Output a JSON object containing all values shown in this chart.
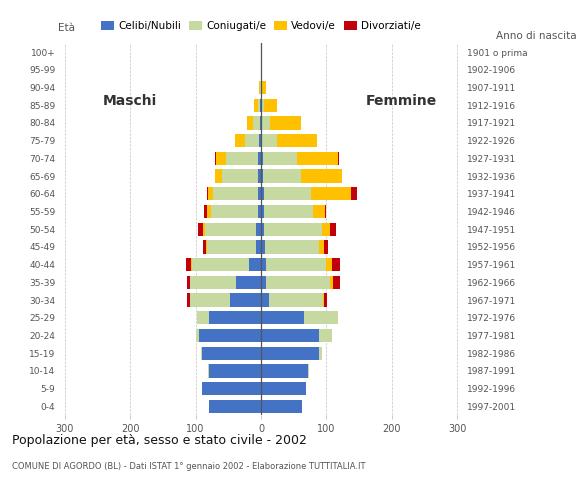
{
  "age_groups": [
    "0-4",
    "5-9",
    "10-14",
    "15-19",
    "20-24",
    "25-29",
    "30-34",
    "35-39",
    "40-44",
    "45-49",
    "50-54",
    "55-59",
    "60-64",
    "65-69",
    "70-74",
    "75-79",
    "80-84",
    "85-89",
    "90-94",
    "95-99",
    "100+"
  ],
  "birth_years": [
    "1997-2001",
    "1992-1996",
    "1987-1991",
    "1982-1986",
    "1977-1981",
    "1972-1976",
    "1967-1971",
    "1962-1966",
    "1957-1961",
    "1952-1956",
    "1947-1951",
    "1942-1946",
    "1937-1941",
    "1932-1936",
    "1927-1931",
    "1922-1926",
    "1917-1921",
    "1912-1916",
    "1907-1911",
    "1902-1906",
    "1901 o prima"
  ],
  "colors": {
    "celibe": "#4472c4",
    "coniugato": "#c5d9a0",
    "vedovo": "#ffc000",
    "divorziato": "#c0000b"
  },
  "maschi": {
    "celibe": [
      80,
      90,
      80,
      90,
      95,
      80,
      48,
      38,
      18,
      8,
      8,
      5,
      5,
      5,
      5,
      3,
      2,
      1,
      0,
      0,
      0
    ],
    "coniugato": [
      0,
      0,
      1,
      2,
      5,
      18,
      60,
      70,
      88,
      75,
      78,
      72,
      68,
      55,
      48,
      22,
      10,
      4,
      1,
      0,
      0
    ],
    "vedovo": [
      0,
      0,
      0,
      0,
      0,
      0,
      0,
      0,
      1,
      1,
      2,
      5,
      8,
      10,
      16,
      15,
      10,
      5,
      2,
      0,
      0
    ],
    "divorziato": [
      0,
      0,
      0,
      0,
      0,
      0,
      5,
      5,
      8,
      5,
      8,
      5,
      2,
      1,
      1,
      0,
      0,
      0,
      0,
      0,
      0
    ]
  },
  "femmine": {
    "celibe": [
      62,
      68,
      72,
      88,
      88,
      65,
      12,
      8,
      8,
      6,
      5,
      4,
      4,
      3,
      3,
      2,
      1,
      0,
      0,
      0,
      0
    ],
    "coniugato": [
      0,
      0,
      2,
      5,
      20,
      52,
      82,
      98,
      92,
      82,
      88,
      75,
      72,
      58,
      52,
      22,
      12,
      5,
      2,
      0,
      0
    ],
    "vedovo": [
      0,
      0,
      0,
      0,
      0,
      0,
      2,
      4,
      8,
      8,
      12,
      18,
      62,
      62,
      62,
      62,
      48,
      20,
      5,
      2,
      1
    ],
    "divorziato": [
      0,
      0,
      0,
      0,
      0,
      0,
      5,
      10,
      12,
      7,
      10,
      3,
      8,
      1,
      2,
      0,
      0,
      0,
      0,
      0,
      0
    ]
  },
  "title": "Popolazione per età, sesso e stato civile - 2002",
  "subtitle": "COMUNE DI AGORDO (BL) - Dati ISTAT 1° gennaio 2002 - Elaborazione TUTTITALIA.IT",
  "label_maschi": "Maschi",
  "label_femmine": "Femmine",
  "label_eta": "Età",
  "label_anno": "Anno di nascita",
  "legend_labels": [
    "Celibi/Nubili",
    "Coniugati/e",
    "Vedovi/e",
    "Divorziati/e"
  ],
  "xlim": 310,
  "bg_color": "#ffffff",
  "grid_color": "#aaaaaa"
}
